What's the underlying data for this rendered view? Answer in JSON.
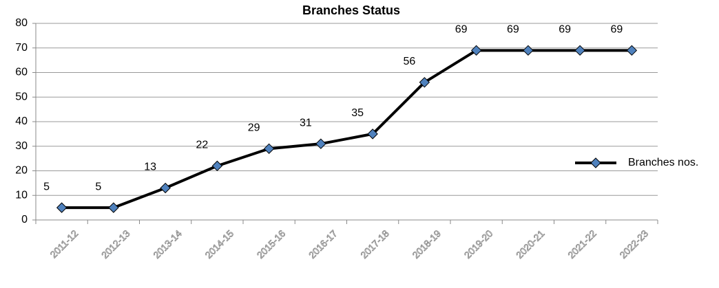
{
  "chart_data": {
    "type": "line",
    "title": "Branches Status",
    "categories": [
      "2011-12",
      "2012-13",
      "2013-14",
      "2014-15",
      "2015-16",
      "2016-17",
      "2017-18",
      "2018-19",
      "2019-20",
      "2020-21",
      "2021-22",
      "2022-23"
    ],
    "series": [
      {
        "name": "Branches nos.",
        "color": "#000000",
        "marker_color": "#4f81bd",
        "values": [
          5,
          5,
          13,
          22,
          29,
          31,
          35,
          56,
          69,
          69,
          69,
          69
        ]
      }
    ],
    "ylim": [
      0,
      80
    ],
    "yticks": [
      0,
      10,
      20,
      30,
      40,
      50,
      60,
      70,
      80
    ],
    "grid": true,
    "legend": "right"
  }
}
